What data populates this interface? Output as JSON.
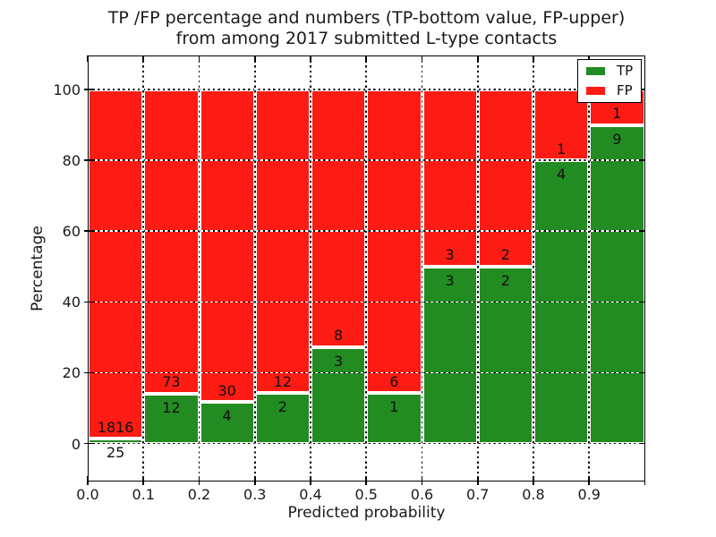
{
  "title_line1": "TP /FP percentage and numbers (TP-bottom value, FP-upper)",
  "title_line2": "from among 2017 submitted L-type contacts",
  "chart_data": {
    "type": "bar",
    "variant": "stacked-100pct-histogram",
    "title": "TP /FP percentage and numbers (TP-bottom value, FP-upper)\nfrom among 2017 submitted L-type contacts",
    "xlabel": "Predicted probability",
    "ylabel": "Percentage",
    "x_tick_labels": [
      "0.0",
      "0.1",
      "0.2",
      "0.3",
      "0.4",
      "0.5",
      "0.6",
      "0.7",
      "0.8",
      "0.9"
    ],
    "y_tick_values": [
      0,
      20,
      40,
      60,
      80,
      100
    ],
    "xlim": [
      0.0,
      1.0
    ],
    "ylim": [
      -10.6,
      109.6
    ],
    "grid": {
      "visible": true,
      "style": "dotted",
      "drawn_above_bars": true
    },
    "bin_width": 0.1,
    "categories": [
      "0.0-0.1",
      "0.1-0.2",
      "0.2-0.3",
      "0.3-0.4",
      "0.4-0.5",
      "0.5-0.6",
      "0.6-0.7",
      "0.7-0.8",
      "0.8-0.9",
      "0.9-1.0"
    ],
    "series": [
      {
        "name": "TP",
        "color": "#228b22",
        "counts": [
          25,
          12,
          4,
          2,
          3,
          1,
          3,
          2,
          4,
          9
        ],
        "pct": [
          1.36,
          14.12,
          11.76,
          14.29,
          27.27,
          14.29,
          50.0,
          50.0,
          80.0,
          90.0
        ]
      },
      {
        "name": "FP",
        "color": "#fc1c14",
        "counts": [
          1816,
          73,
          30,
          12,
          8,
          6,
          3,
          2,
          1,
          1
        ],
        "pct": [
          98.64,
          85.88,
          88.24,
          85.71,
          72.73,
          85.71,
          50.0,
          50.0,
          20.0,
          10.0
        ]
      }
    ],
    "annotation_note": "FP count printed above green/red boundary, TP count printed below it",
    "legend": {
      "position": "upper right",
      "entries": [
        {
          "label": "TP",
          "color": "#228b22"
        },
        {
          "label": "FP",
          "color": "#fc1c14"
        }
      ]
    }
  },
  "colors": {
    "tp_green": "#228b22",
    "fp_red": "#fc1c14",
    "background": "#ffffff",
    "text": "#1a1a1a",
    "axis": "#000000"
  }
}
